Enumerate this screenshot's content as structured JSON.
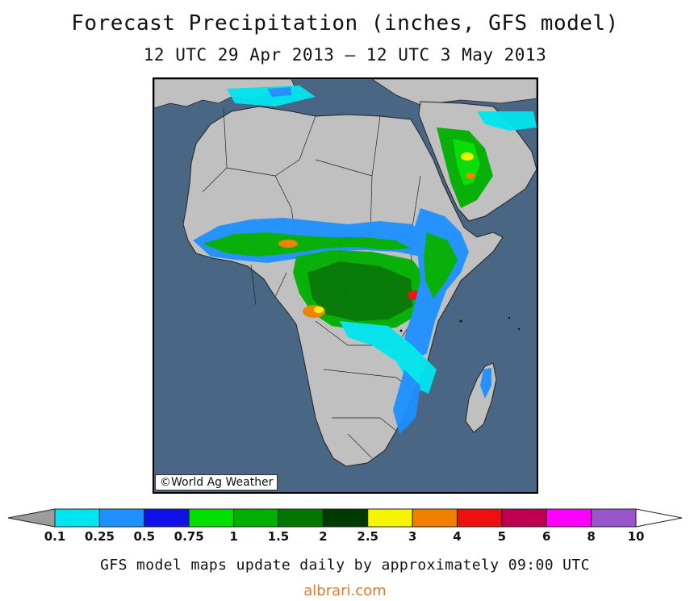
{
  "header": {
    "title": "Forecast Precipitation (inches, GFS model)",
    "subtitle": "12 UTC 29 Apr 2013 — 12 UTC 3 May 2013"
  },
  "map": {
    "ocean_color": "#4a6685",
    "land_color": "#c0c0c0",
    "copyright": "©World Ag Weather"
  },
  "legend": {
    "bins": [
      {
        "label": "0.1",
        "color": "#9c9c9c"
      },
      {
        "label": "0.25",
        "color": "#00e5ee"
      },
      {
        "label": "0.5",
        "color": "#1e90ff"
      },
      {
        "label": "0.75",
        "color": "#1010e8"
      },
      {
        "label": "1",
        "color": "#00e000"
      },
      {
        "label": "1.5",
        "color": "#00b000"
      },
      {
        "label": "2",
        "color": "#007800"
      },
      {
        "label": "2.5",
        "color": "#003a00"
      },
      {
        "label": "3",
        "color": "#f5f500"
      },
      {
        "label": "4",
        "color": "#f08000"
      },
      {
        "label": "5",
        "color": "#ee1010"
      },
      {
        "label": "6",
        "color": "#c00050"
      },
      {
        "label": "8",
        "color": "#ff00ff"
      },
      {
        "label": "10",
        "color": "#9955cc"
      }
    ],
    "open_end_color": "#ffffff"
  },
  "footer": {
    "note": "GFS model maps update daily by approximately 09:00 UTC",
    "watermark": "albrari.com"
  }
}
